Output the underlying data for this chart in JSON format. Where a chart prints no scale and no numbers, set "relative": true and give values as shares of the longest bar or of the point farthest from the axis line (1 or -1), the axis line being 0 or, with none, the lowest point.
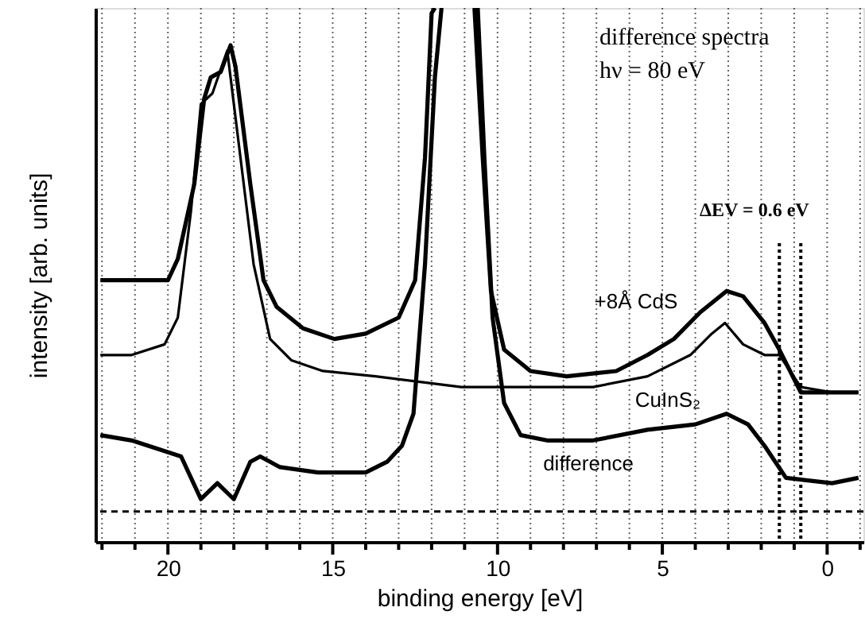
{
  "chart_data": {
    "type": "line",
    "relative": true,
    "xlabel": "binding energy [eV]",
    "ylabel": "intensity [arb. units]",
    "xlim": [
      22.2,
      -1.1
    ],
    "xticks": [
      {
        "value": 22,
        "label": null
      },
      {
        "value": 21,
        "label": null
      },
      20,
      {
        "value": 19,
        "label": null
      },
      {
        "value": 18,
        "label": null
      },
      {
        "value": 17,
        "label": null
      },
      {
        "value": 16,
        "label": null
      },
      15,
      {
        "value": 14,
        "label": null
      },
      {
        "value": 13,
        "label": null
      },
      {
        "value": 12,
        "label": null
      },
      {
        "value": 11,
        "label": null
      },
      10,
      {
        "value": 9,
        "label": null
      },
      {
        "value": 8,
        "label": null
      },
      {
        "value": 7,
        "label": null
      },
      {
        "value": 6,
        "label": null
      },
      5,
      {
        "value": 4,
        "label": null
      },
      {
        "value": 3,
        "label": null
      },
      {
        "value": 2,
        "label": null
      },
      {
        "value": 1,
        "label": null
      },
      0,
      {
        "value": -1,
        "label": null
      }
    ],
    "tick_labels": "x",
    "grid": "x",
    "line_style": "solid",
    "marker": "none",
    "series": [
      {
        "name": "+8Å CdS",
        "color": "#000000",
        "x": [
          22.05,
          20,
          19.7,
          19.2,
          18.9,
          18.7,
          18.4,
          18.1,
          17.95,
          17.5,
          17.1,
          16.7,
          15.9,
          14.95,
          14,
          13,
          12.5,
          12.2,
          12.0,
          11.9,
          11.3,
          10.7,
          10.45,
          10.2,
          9.8,
          9.0,
          7.9,
          6.4,
          5.45,
          4.65,
          3.85,
          3.05,
          2.55,
          1.9,
          1.45,
          0.8,
          -0.15,
          -0.95
        ],
        "values": [
          0.49,
          0.49,
          0.53,
          0.67,
          0.83,
          0.87,
          0.88,
          0.93,
          0.89,
          0.67,
          0.49,
          0.44,
          0.4,
          0.38,
          0.39,
          0.42,
          0.49,
          0.72,
          0.99,
          1.0,
          null,
          1.0,
          0.72,
          0.47,
          0.36,
          0.32,
          0.31,
          0.32,
          0.35,
          0.38,
          0.43,
          0.47,
          0.46,
          0.41,
          0.36,
          0.28,
          0.28,
          0.28
        ]
      },
      {
        "name": "CuInS₂",
        "color": "#000000",
        "x": [
          22.05,
          21.1,
          20.1,
          19.7,
          19.3,
          19.0,
          18.65,
          18.2,
          17.9,
          17.4,
          16.9,
          16.25,
          15.3,
          13.7,
          12.4,
          11.1,
          9.5,
          7.1,
          5.45,
          4.15,
          3.5,
          3.1,
          2.55,
          1.9,
          1.45,
          0.8,
          -0.15,
          -0.95
        ],
        "values": [
          0.35,
          0.35,
          0.37,
          0.42,
          0.62,
          0.82,
          0.84,
          0.92,
          0.77,
          0.52,
          0.38,
          0.34,
          0.32,
          0.31,
          0.3,
          0.29,
          0.29,
          0.29,
          0.31,
          0.35,
          0.39,
          0.41,
          0.37,
          0.35,
          0.35,
          0.29,
          0.28,
          0.28
        ]
      },
      {
        "name": "difference",
        "color": "#000000",
        "x": [
          22.05,
          21.1,
          20.1,
          19.6,
          19.3,
          19.0,
          18.5,
          18.0,
          17.5,
          17.2,
          16.6,
          15.45,
          14.0,
          13.35,
          12.9,
          12.55,
          12.2,
          11.9,
          11.7,
          11.15,
          10.6,
          10.4,
          10.15,
          9.8,
          9.3,
          8.5,
          7.1,
          5.45,
          4.0,
          3.05,
          2.4,
          1.9,
          1.25,
          -0.15,
          -0.95
        ],
        "values": [
          0.2,
          0.19,
          0.17,
          0.16,
          0.12,
          0.08,
          0.11,
          0.08,
          0.15,
          0.16,
          0.14,
          0.13,
          0.13,
          0.15,
          0.18,
          0.24,
          0.52,
          0.87,
          1.0,
          null,
          1.0,
          0.72,
          0.42,
          0.26,
          0.2,
          0.19,
          0.19,
          0.21,
          0.22,
          0.24,
          0.22,
          0.18,
          0.12,
          0.11,
          0.12
        ]
      }
    ],
    "ref_lines": [
      {
        "axis": "x",
        "value": 1.45,
        "line_style": "dotted",
        "color": "#000000"
      },
      {
        "axis": "x",
        "value": 0.8,
        "line_style": "dotted",
        "color": "#000000"
      },
      {
        "axis": "y",
        "value": 0.057,
        "line_style": "dashed",
        "color": "#000000"
      }
    ],
    "annotations": [
      "difference spectra",
      "hν = 80 eV",
      "ΔEV = 0.6 eV"
    ]
  }
}
